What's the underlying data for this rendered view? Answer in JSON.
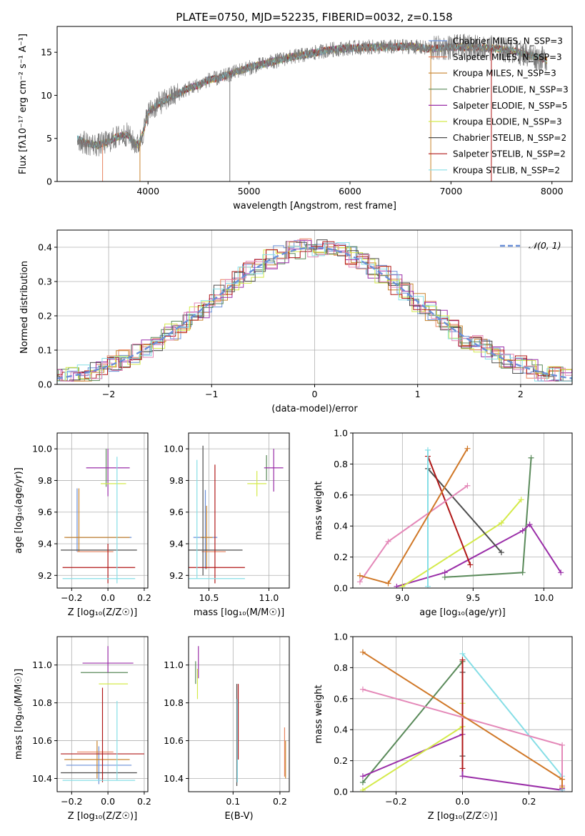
{
  "figure_title": "PLATE=0750, MJD=52235, FIBERID=0032, z=0.158",
  "colors": {
    "Chabrier MILES": "#6a8fd8",
    "Salpeter MILES": "#e8825e",
    "Kroupa MILES": "#c8842e",
    "Chabrier ELODIE": "#5a8a5a",
    "Salpeter ELODIE": "#9a2ea8",
    "Kroupa ELODIE": "#d4ea4a",
    "Chabrier STELIB": "#4d4d4d",
    "Salpeter STELIB": "#b01818",
    "Kroupa STELIB": "#86dee6",
    "normal": "#6a8fd8",
    "pink": "#e488b8",
    "orange": "#d07828"
  },
  "chart_data": [
    {
      "id": "spectrum",
      "type": "line",
      "title": "PLATE=0750, MJD=52235, FIBERID=0032, z=0.158",
      "xlabel": "wavelength [Angstrom, rest frame]",
      "ylabel": "Flux [fλ10⁻¹⁷ erg cm⁻² s⁻¹ A⁻¹]",
      "xlim": [
        3100,
        8200
      ],
      "ylim": [
        0,
        18
      ],
      "xticks": [
        4000,
        5000,
        6000,
        7000,
        8000
      ],
      "yticks": [
        0,
        5,
        10,
        15
      ],
      "grid": false,
      "legend_position": "bottom-right",
      "legend": [
        "Chabrier MILES, N_SSP=3",
        "Salpeter MILES, N_SSP=3",
        "Kroupa MILES, N_SSP=3",
        "Chabrier ELODIE, N_SSP=3",
        "Salpeter ELODIE, N_SSP=5",
        "Kroupa ELODIE, N_SSP=3",
        "Chabrier STELIB, N_SSP=2",
        "Salpeter STELIB, N_SSP=2",
        "Kroupa STELIB, N_SSP=2"
      ],
      "continuum": {
        "x": [
          3300,
          3350,
          3400,
          3500,
          3600,
          3700,
          3800,
          3850,
          3900,
          3950,
          4000,
          4100,
          4200,
          4300,
          4400,
          4500,
          4600,
          4700,
          4800,
          4900,
          5000,
          5200,
          5400,
          5600,
          5800,
          6000,
          6200,
          6400,
          6600,
          6800,
          7000,
          7200,
          7400,
          7600,
          7800,
          8000
        ],
        "y": [
          5.0,
          4.6,
          4.4,
          4.2,
          4.6,
          5.2,
          5.5,
          4.6,
          4.2,
          5.6,
          8.0,
          9.0,
          9.6,
          10.2,
          10.8,
          11.2,
          11.8,
          12.0,
          12.4,
          12.9,
          13.2,
          13.8,
          14.4,
          14.8,
          15.3,
          15.5,
          15.6,
          15.6,
          15.7,
          15.4,
          15.6,
          15.6,
          15.5,
          15.2,
          14.6,
          13.9
        ]
      }
    },
    {
      "id": "residuals",
      "type": "line",
      "xlabel": "(data-model)/error",
      "ylabel": "Normed distribution",
      "xlim": [
        -2.5,
        2.5
      ],
      "ylim": [
        0,
        0.45
      ],
      "xticks": [
        -2,
        -1,
        0,
        1,
        2
      ],
      "yticks": [
        0.0,
        0.1,
        0.2,
        0.3,
        0.4
      ],
      "grid": true,
      "legend_position": "top-right",
      "legend": [
        "𝒩(0, 1)"
      ]
    },
    {
      "id": "z_age",
      "type": "scatter",
      "xlabel": "Z [log₁₀(Z/Z☉)]",
      "ylabel": "age  [log₁₀(age/yr)]",
      "xlim": [
        -0.28,
        0.22
      ],
      "ylim": [
        9.12,
        10.1
      ],
      "xticks": [
        -0.2,
        0.0,
        0.2
      ],
      "yticks": [
        9.2,
        9.4,
        9.6,
        9.8,
        10.0
      ],
      "grid": true,
      "points": [
        {
          "series": "Chabrier MILES",
          "x": -0.05,
          "y": 9.44,
          "xerr": 0.18,
          "yerr": [
            0.0,
            0.0
          ]
        },
        {
          "series": "Chabrier MILES",
          "x": -0.17,
          "y": 9.55,
          "xerr": 0.0,
          "yerr": [
            0.2,
            0.2
          ]
        },
        {
          "series": "Salpeter MILES",
          "x": -0.07,
          "y": 9.35,
          "xerr": 0.1,
          "yerr": [
            0.0,
            0.0
          ]
        },
        {
          "series": "Kroupa MILES",
          "x": -0.06,
          "y": 9.44,
          "xerr": 0.18,
          "yerr": [
            0.0,
            0.0
          ]
        },
        {
          "series": "Kroupa MILES",
          "x": -0.16,
          "y": 9.55,
          "xerr": 0.0,
          "yerr": [
            0.2,
            0.2
          ]
        },
        {
          "series": "Chabrier ELODIE",
          "x": -0.01,
          "y": 9.88,
          "xerr": 0.0,
          "yerr": [
            0.12,
            0.12
          ]
        },
        {
          "series": "Salpeter ELODIE",
          "x": 0.0,
          "y": 9.88,
          "xerr": 0.12,
          "yerr": [
            0.18,
            0.12
          ]
        },
        {
          "series": "Kroupa ELODIE",
          "x": 0.03,
          "y": 9.78,
          "xerr": 0.07,
          "yerr": [
            0.0,
            0.0
          ]
        },
        {
          "series": "Chabrier STELIB",
          "x": -0.05,
          "y": 9.36,
          "xerr": 0.21,
          "yerr": [
            0.0,
            0.0
          ]
        },
        {
          "series": "Salpeter STELIB",
          "x": -0.05,
          "y": 9.25,
          "xerr": 0.2,
          "yerr": [
            0.0,
            0.0
          ]
        },
        {
          "series": "Salpeter STELIB",
          "x": 0.0,
          "y": 9.25,
          "xerr": 0.0,
          "yerr": [
            0.1,
            0.15
          ]
        },
        {
          "series": "Kroupa STELIB",
          "x": -0.05,
          "y": 9.18,
          "xerr": 0.2,
          "yerr": [
            0.0,
            0.0
          ]
        },
        {
          "series": "Kroupa STELIB",
          "x": 0.05,
          "y": 9.55,
          "xerr": 0.0,
          "yerr": [
            0.4,
            0.4
          ]
        }
      ]
    },
    {
      "id": "mass_age",
      "type": "scatter",
      "xlabel": "mass [log₁₀(M/M☉)]",
      "xlim": [
        10.33,
        11.17
      ],
      "ylim": [
        9.12,
        10.1
      ],
      "xticks": [
        10.5,
        11.0
      ],
      "yticks": [
        9.2,
        9.4,
        9.6,
        9.8,
        10.0
      ],
      "grid": true,
      "points": [
        {
          "series": "Chabrier MILES",
          "x": 10.47,
          "y": 9.44,
          "xerr": 0.1,
          "yerr": [
            0.2,
            0.3
          ]
        },
        {
          "series": "Salpeter MILES",
          "x": 10.54,
          "y": 9.35,
          "xerr": 0.1,
          "yerr": [
            0.0,
            0.0
          ]
        },
        {
          "series": "Kroupa MILES",
          "x": 10.48,
          "y": 9.44,
          "xerr": 0.05,
          "yerr": [
            0.2,
            0.2
          ]
        },
        {
          "series": "Chabrier ELODIE",
          "x": 10.98,
          "y": 9.88,
          "xerr": 0.0,
          "yerr": [
            0.08,
            0.08
          ]
        },
        {
          "series": "Salpeter ELODIE",
          "x": 11.04,
          "y": 9.88,
          "xerr": 0.08,
          "yerr": [
            0.15,
            0.12
          ]
        },
        {
          "series": "Kroupa ELODIE",
          "x": 10.9,
          "y": 9.78,
          "xerr": 0.08,
          "yerr": [
            0.08,
            0.08
          ]
        },
        {
          "series": "Chabrier STELIB",
          "x": 10.45,
          "y": 9.36,
          "xerr": 0.33,
          "yerr": [
            0.16,
            0.66
          ]
        },
        {
          "series": "Salpeter STELIB",
          "x": 10.55,
          "y": 9.25,
          "xerr": 0.25,
          "yerr": [
            0.1,
            0.65
          ]
        },
        {
          "series": "Kroupa STELIB",
          "x": 10.4,
          "y": 9.18,
          "xerr": 0.4,
          "yerr": [
            0.0,
            0.75
          ]
        }
      ]
    },
    {
      "id": "weight_age",
      "type": "line",
      "xlabel": "age  [log₁₀(age/yr)]",
      "ylabel": "mass weight",
      "xlim": [
        8.65,
        10.2
      ],
      "ylim": [
        0,
        1
      ],
      "xticks": [
        9.0,
        9.5,
        10.0
      ],
      "yticks": [
        0.0,
        0.2,
        0.4,
        0.6,
        0.8,
        1.0
      ],
      "grid": true,
      "series": [
        {
          "color_key": "Chabrier ELODIE",
          "x": [
            9.3,
            9.85,
            9.91
          ],
          "y": [
            0.07,
            0.1,
            0.84
          ]
        },
        {
          "color_key": "Salpeter ELODIE",
          "x": [
            8.96,
            9.3,
            9.85,
            9.9,
            10.12
          ],
          "y": [
            0.01,
            0.1,
            0.37,
            0.41,
            0.1
          ]
        },
        {
          "color_key": "Kroupa ELODIE",
          "x": [
            9.0,
            9.7,
            9.84
          ],
          "y": [
            0.01,
            0.42,
            0.57
          ]
        },
        {
          "color_key": "Chabrier STELIB",
          "x": [
            9.18,
            9.7
          ],
          "y": [
            0.77,
            0.23
          ]
        },
        {
          "color_key": "Salpeter STELIB",
          "x": [
            9.18,
            9.48
          ],
          "y": [
            0.85,
            0.15
          ]
        },
        {
          "color_key": "Kroupa STELIB",
          "x": [
            9.18,
            9.18
          ],
          "y": [
            0.89,
            0.01
          ]
        },
        {
          "color_key": "pink",
          "x": [
            8.7,
            8.9,
            9.46
          ],
          "y": [
            0.04,
            0.3,
            0.66
          ]
        },
        {
          "color_key": "orange",
          "x": [
            8.7,
            8.9,
            9.46
          ],
          "y": [
            0.08,
            0.03,
            0.9
          ]
        }
      ]
    },
    {
      "id": "z_mass",
      "type": "scatter",
      "xlabel": "Z [log₁₀(Z/Z☉)]",
      "ylabel": "mass [log₁₀(M/M☉)]",
      "xlim": [
        -0.28,
        0.22
      ],
      "ylim": [
        10.33,
        11.15
      ],
      "xticks": [
        -0.2,
        0.0,
        0.2
      ],
      "yticks": [
        10.4,
        10.6,
        10.8,
        11.0
      ],
      "grid": true,
      "points": [
        {
          "series": "Chabrier MILES",
          "x": -0.05,
          "y": 10.47,
          "xerr": 0.18,
          "yerr": [
            0.1,
            0.1
          ]
        },
        {
          "series": "Salpeter MILES",
          "x": -0.07,
          "y": 10.54,
          "xerr": 0.1,
          "yerr": [
            0.0,
            0.0
          ]
        },
        {
          "series": "Kroupa MILES",
          "x": -0.06,
          "y": 10.5,
          "xerr": 0.18,
          "yerr": [
            0.1,
            0.1
          ]
        },
        {
          "series": "Chabrier ELODIE",
          "x": -0.02,
          "y": 10.96,
          "xerr": 0.13,
          "yerr": [
            0.0,
            0.0
          ]
        },
        {
          "series": "Salpeter ELODIE",
          "x": 0.0,
          "y": 11.01,
          "xerr": 0.14,
          "yerr": [
            0.05,
            0.09
          ]
        },
        {
          "series": "Kroupa ELODIE",
          "x": 0.03,
          "y": 10.9,
          "xerr": 0.08,
          "yerr": [
            0.0,
            0.0
          ]
        },
        {
          "series": "Chabrier STELIB",
          "x": -0.05,
          "y": 10.43,
          "xerr": 0.21,
          "yerr": [
            0.0,
            0.0
          ]
        },
        {
          "series": "Salpeter STELIB",
          "x": -0.03,
          "y": 10.53,
          "xerr": 0.23,
          "yerr": [
            0.15,
            0.35
          ]
        },
        {
          "series": "Kroupa STELIB",
          "x": -0.05,
          "y": 10.39,
          "xerr": 0.2,
          "yerr": [
            0.0,
            0.0
          ]
        },
        {
          "series": "Kroupa STELIB",
          "x": 0.05,
          "y": 10.6,
          "xerr": 0.0,
          "yerr": [
            0.21,
            0.21
          ]
        }
      ]
    },
    {
      "id": "ebv_mass",
      "type": "scatter",
      "xlabel": "E(B-V)",
      "xlim": [
        0.005,
        0.22
      ],
      "ylim": [
        10.33,
        11.15
      ],
      "xticks": [
        0.1,
        0.2
      ],
      "yticks": [
        10.4,
        10.6,
        10.8,
        11.0
      ],
      "grid": true,
      "points": [
        {
          "series": "Chabrier MILES",
          "x": 0.109,
          "y": 10.6,
          "xerr": 0.0,
          "yerr": [
            0.22,
            0.22
          ]
        },
        {
          "series": "Salpeter MILES",
          "x": 0.21,
          "y": 10.54,
          "xerr": 0.0,
          "yerr": [
            0.13,
            0.13
          ]
        },
        {
          "series": "Kroupa MILES",
          "x": 0.212,
          "y": 10.5,
          "xerr": 0.0,
          "yerr": [
            0.1,
            0.1
          ]
        },
        {
          "series": "Chabrier ELODIE",
          "x": 0.02,
          "y": 10.96,
          "xerr": 0.0,
          "yerr": [
            0.06,
            0.06
          ]
        },
        {
          "series": "Salpeter ELODIE",
          "x": 0.026,
          "y": 11.01,
          "xerr": 0.0,
          "yerr": [
            0.08,
            0.09
          ]
        },
        {
          "series": "Kroupa ELODIE",
          "x": 0.024,
          "y": 10.9,
          "xerr": 0.0,
          "yerr": [
            0.08,
            0.08
          ]
        },
        {
          "series": "Chabrier STELIB",
          "x": 0.108,
          "y": 10.63,
          "xerr": 0.0,
          "yerr": [
            0.27,
            0.27
          ]
        },
        {
          "series": "Salpeter STELIB",
          "x": 0.111,
          "y": 10.7,
          "xerr": 0.0,
          "yerr": [
            0.2,
            0.2
          ]
        },
        {
          "series": "Kroupa STELIB",
          "x": 0.109,
          "y": 10.6,
          "xerr": 0.0,
          "yerr": [
            0.22,
            0.22
          ]
        }
      ]
    },
    {
      "id": "weight_z",
      "type": "line",
      "xlabel": "Z [log₁₀(Z/Z☉)]",
      "ylabel": "mass weight",
      "xlim": [
        -0.33,
        0.33
      ],
      "ylim": [
        0,
        1
      ],
      "xticks": [
        -0.2,
        0.0,
        0.2
      ],
      "yticks": [
        0.0,
        0.2,
        0.4,
        0.6,
        0.8,
        1.0
      ],
      "grid": true,
      "series": [
        {
          "color_key": "Chabrier ELODIE",
          "x": [
            -0.3,
            0.0,
            0.0
          ],
          "y": [
            0.06,
            0.84,
            0.1
          ]
        },
        {
          "color_key": "Salpeter ELODIE",
          "x": [
            -0.3,
            0.0,
            0.0,
            0.3,
            0.3
          ],
          "y": [
            0.1,
            0.37,
            0.1,
            0.01,
            0.02
          ]
        },
        {
          "color_key": "Kroupa ELODIE",
          "x": [
            -0.3,
            0.0,
            0.0
          ],
          "y": [
            0.01,
            0.42,
            0.57
          ]
        },
        {
          "color_key": "Chabrier STELIB",
          "x": [
            0.0,
            0.0
          ],
          "y": [
            0.23,
            0.77
          ]
        },
        {
          "color_key": "Salpeter STELIB",
          "x": [
            0.0,
            0.0
          ],
          "y": [
            0.15,
            0.85
          ]
        },
        {
          "color_key": "Kroupa STELIB",
          "x": [
            0.0,
            0.3,
            0.3
          ],
          "y": [
            0.89,
            0.1,
            0.01
          ]
        },
        {
          "color_key": "pink",
          "x": [
            -0.3,
            0.3,
            0.3
          ],
          "y": [
            0.66,
            0.3,
            0.04
          ]
        },
        {
          "color_key": "orange",
          "x": [
            -0.3,
            0.3,
            0.3
          ],
          "y": [
            0.9,
            0.08,
            0.03
          ]
        }
      ]
    }
  ]
}
